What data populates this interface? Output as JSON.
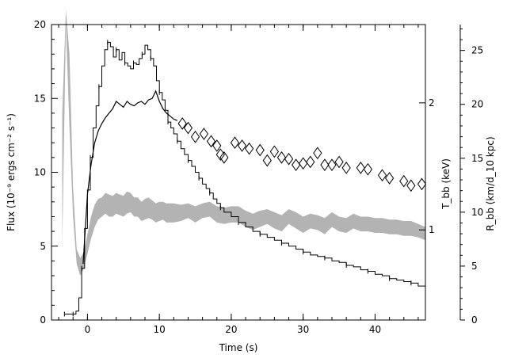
{
  "chart_data": {
    "type": "line",
    "xlabel": "Time (s)",
    "ylabel": "Flux (10⁻⁹ ergs cm⁻² s⁻¹)",
    "ylabel_right_inner": "T_bb (keV)",
    "ylabel_right_outer": "R_bb (km/d_10 kpc)",
    "xlim": [
      -5,
      47
    ],
    "ylim": [
      0,
      20
    ],
    "x_ticks": [
      0,
      10,
      20,
      30,
      40
    ],
    "x_tick_labels": [
      "0",
      "10",
      "20",
      "30",
      "40"
    ],
    "y_ticks": [
      0,
      5,
      10,
      15,
      20
    ],
    "y_tick_labels": [
      "0",
      "5",
      "10",
      "15",
      "20"
    ],
    "t_axis": {
      "label": "T_bb (keV)",
      "ticks": [
        1,
        2
      ],
      "tick_labels": [
        "1",
        "2"
      ],
      "flux_equivalent": [
        6.1,
        14.7
      ]
    },
    "r_axis": {
      "label": "R_bb (km/d_10 kpc)",
      "ylim": [
        0,
        27.4
      ],
      "ticks": [
        0,
        5,
        10,
        15,
        20,
        25
      ],
      "tick_labels": [
        "0",
        "5",
        "10",
        "15",
        "20",
        "25"
      ]
    },
    "grid": false,
    "series": [
      {
        "style": "black-step-line",
        "x": [
          -3.2,
          -2.8,
          -2.4,
          -2.0,
          -1.6,
          -1.2,
          -0.8,
          -0.4,
          0,
          0.4,
          0.8,
          1.2,
          1.6,
          2.0,
          2.4,
          2.8,
          3.2,
          3.6,
          4.0,
          4.4,
          4.8,
          5.2,
          5.6,
          6.0,
          6.4,
          6.8,
          7.2,
          7.6,
          8.0,
          8.4,
          8.8,
          9.2,
          9.6,
          10.0,
          10.4,
          10.8,
          11.2,
          11.6,
          12.0,
          12.5,
          13.0,
          13.5,
          14.0,
          14.5,
          15.0,
          15.5,
          16.0,
          16.5,
          17.0,
          17.5,
          18.0,
          18.5,
          19.0,
          20.0,
          21.0,
          22.0,
          23.0,
          24.0,
          25.0,
          26.0,
          27.0,
          28.0,
          29.0,
          30.0,
          31.0,
          32.0,
          33.0,
          34.0,
          35.0,
          36.0,
          37.0,
          38.0,
          39.0,
          40.0,
          41.0,
          42.0,
          43.0,
          44.0,
          45.0,
          46.0,
          47.0
        ],
        "values": [
          0.4,
          0.4,
          0.4,
          0.4,
          0.6,
          1.5,
          3.5,
          6.2,
          8.8,
          11.0,
          13.0,
          14.5,
          15.8,
          17.2,
          18.3,
          18.8,
          18.5,
          17.8,
          18.3,
          17.6,
          18.1,
          17.4,
          17.2,
          17.0,
          17.4,
          17.3,
          17.7,
          18.0,
          18.6,
          18.3,
          17.7,
          17.2,
          16.2,
          15.4,
          14.9,
          14.2,
          13.4,
          13.0,
          12.6,
          12.1,
          11.6,
          11.2,
          10.8,
          10.4,
          10.0,
          9.6,
          9.2,
          8.9,
          8.6,
          8.2,
          7.9,
          7.6,
          7.3,
          7.0,
          6.6,
          6.3,
          6.0,
          5.8,
          5.6,
          5.4,
          5.2,
          5.0,
          4.8,
          4.6,
          4.4,
          4.3,
          4.2,
          4.0,
          3.9,
          3.7,
          3.6,
          3.4,
          3.3,
          3.1,
          3.0,
          2.8,
          2.7,
          2.6,
          2.5,
          2.3,
          2.2
        ]
      },
      {
        "style": "black-noisy-line-temperature",
        "x": [
          -0.6,
          0,
          0.5,
          1.0,
          1.5,
          2.0,
          2.5,
          3.0,
          3.5,
          4.0,
          4.5,
          5.0,
          5.5,
          6.0,
          6.5,
          7.0,
          7.5,
          8.0,
          8.5,
          9.0,
          9.5,
          10.0,
          10.5,
          11.0,
          11.5,
          12.0,
          12.5
        ],
        "values": [
          3.8,
          8.5,
          10.5,
          12.0,
          12.8,
          13.3,
          13.7,
          14.0,
          14.3,
          14.8,
          14.6,
          14.4,
          14.8,
          14.6,
          14.5,
          14.7,
          14.8,
          14.6,
          14.9,
          15.0,
          15.5,
          14.8,
          14.3,
          14.0,
          13.8,
          13.6,
          13.5
        ]
      },
      {
        "style": "diamonds-temperature",
        "x": [
          13.2,
          14.0,
          15.0,
          16.2,
          17.2,
          18.0,
          18.5,
          19.0,
          20.5,
          21.5,
          22.5,
          24.0,
          25.0,
          26.0,
          27.0,
          28.0,
          29.0,
          30.0,
          31.0,
          32.0,
          33.0,
          34.0,
          35.0,
          36.0,
          38.0,
          39.0,
          41.0,
          42.0,
          44.0,
          45.0,
          46.5
        ],
        "values": [
          13.3,
          13.0,
          12.4,
          12.6,
          12.1,
          11.8,
          11.2,
          11.0,
          12.0,
          11.8,
          11.6,
          11.5,
          10.8,
          11.4,
          11.0,
          10.9,
          10.5,
          10.6,
          10.7,
          11.3,
          10.5,
          10.5,
          10.7,
          10.3,
          10.3,
          10.2,
          9.8,
          9.6,
          9.4,
          9.1,
          9.2
        ]
      },
      {
        "style": "gray-band-radius",
        "x": [
          -3.5,
          -3.0,
          -2.5,
          -2.0,
          -1.5,
          -1.0,
          -0.5,
          0,
          0.5,
          1.0,
          1.5,
          2.0,
          2.5,
          3.0,
          3.5,
          4.0,
          4.5,
          5.0,
          5.5,
          6.0,
          6.5,
          7.0,
          7.5,
          8.0,
          8.5,
          9.0,
          9.5,
          10.0,
          10.5,
          11.0,
          11.5,
          12.0,
          13,
          14,
          15,
          16,
          17,
          18,
          19,
          20,
          21,
          22,
          23,
          24,
          25,
          26,
          27,
          28,
          29,
          30,
          31,
          32,
          33,
          34,
          35,
          36,
          37,
          38,
          39,
          40,
          41,
          42,
          43,
          44,
          45,
          46,
          47
        ],
        "low": [
          5.0,
          20.0,
          13.0,
          7.0,
          3.8,
          3.0,
          3.5,
          4.5,
          5.5,
          6.3,
          6.8,
          7.0,
          7.2,
          7.0,
          7.0,
          7.2,
          7.1,
          7.0,
          7.2,
          7.3,
          7.0,
          7.0,
          6.7,
          6.8,
          6.9,
          6.8,
          6.6,
          6.7,
          6.8,
          6.6,
          6.6,
          6.6,
          6.7,
          6.9,
          6.6,
          6.9,
          7.0,
          6.6,
          6.5,
          6.6,
          6.6,
          6.3,
          6.1,
          6.3,
          6.5,
          6.2,
          6.0,
          6.5,
          6.2,
          5.9,
          6.2,
          6.1,
          5.8,
          6.3,
          6.0,
          5.9,
          6.2,
          6.0,
          6.0,
          5.9,
          5.9,
          5.8,
          5.8,
          5.7,
          5.7,
          5.6,
          5.4
        ],
        "high": [
          14.0,
          21.0,
          18.0,
          9.0,
          4.8,
          4.2,
          4.6,
          5.8,
          7.0,
          7.8,
          8.2,
          8.3,
          8.6,
          8.5,
          8.4,
          8.6,
          8.5,
          8.4,
          8.7,
          8.6,
          8.3,
          8.3,
          8.0,
          8.2,
          8.3,
          8.1,
          7.9,
          8.0,
          8.0,
          7.9,
          7.9,
          7.9,
          7.8,
          7.9,
          7.7,
          7.9,
          8.0,
          7.7,
          7.6,
          7.7,
          7.7,
          7.4,
          7.2,
          7.4,
          7.5,
          7.3,
          7.1,
          7.5,
          7.3,
          7.0,
          7.2,
          7.1,
          6.9,
          7.3,
          7.0,
          6.9,
          7.2,
          7.0,
          7.0,
          6.9,
          6.9,
          6.8,
          6.8,
          6.7,
          6.7,
          6.5,
          6.3
        ]
      }
    ]
  }
}
